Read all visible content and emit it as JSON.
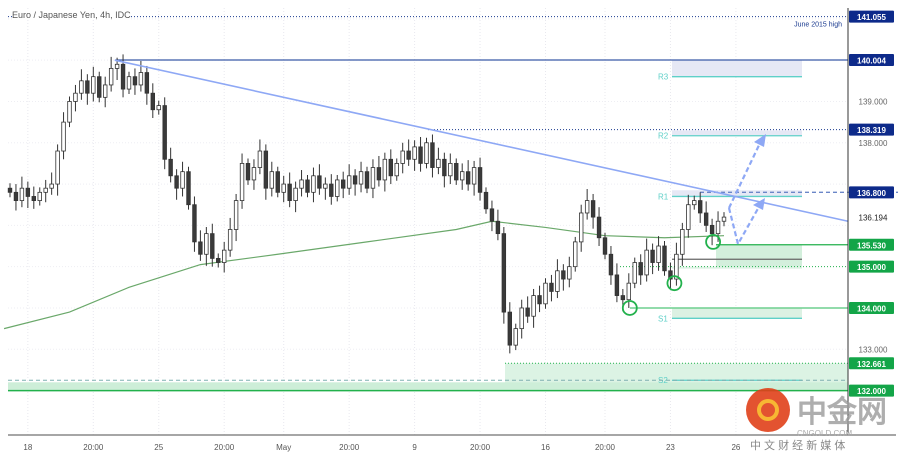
{
  "header": {
    "title": "Euro / Japanese Yen, 4h, IDC"
  },
  "colors": {
    "up": "#ffffff",
    "down": "#3a3a3a",
    "wick": "#333333",
    "ma": "#6aa86a",
    "trend": "#8ea8f5",
    "navy": "#1a3a8f",
    "green": "#22b14c",
    "teal": "#5fd0c8",
    "arrow": "#8ea8f5"
  },
  "chart_data": {
    "type": "candlestick",
    "title": "Euro / Japanese Yen, 4h, IDC",
    "ylim": [
      131.0,
      141.3
    ],
    "x_ticks": [
      {
        "label": "18",
        "i": 3
      },
      {
        "label": "20:00",
        "i": 14
      },
      {
        "label": "25",
        "i": 25
      },
      {
        "label": "20:00",
        "i": 36
      },
      {
        "label": "May",
        "i": 46
      },
      {
        "label": "20:00",
        "i": 57
      },
      {
        "label": "9",
        "i": 68
      },
      {
        "label": "20:00",
        "i": 79
      },
      {
        "label": "16",
        "i": 90
      },
      {
        "label": "20:00",
        "i": 100
      },
      {
        "label": "23",
        "i": 111
      },
      {
        "label": "26",
        "i": 122
      }
    ],
    "y_ticks": [
      "139.000",
      "138.000",
      "133.000"
    ],
    "y_tick_values": [
      139.0,
      138.0,
      133.0
    ],
    "closes": [
      136.8,
      136.6,
      136.9,
      136.7,
      136.6,
      136.8,
      136.9,
      137.0,
      137.8,
      138.5,
      139.0,
      139.2,
      139.5,
      139.2,
      139.6,
      139.1,
      139.4,
      139.8,
      139.9,
      139.3,
      139.6,
      139.4,
      139.7,
      139.2,
      138.8,
      138.9,
      137.6,
      137.2,
      136.9,
      137.3,
      136.5,
      135.6,
      135.3,
      135.8,
      135.2,
      135.1,
      135.4,
      135.9,
      136.6,
      137.5,
      137.1,
      137.4,
      137.8,
      136.9,
      137.3,
      136.8,
      137.0,
      136.6,
      136.9,
      137.1,
      136.8,
      137.2,
      136.9,
      137.0,
      136.7,
      137.1,
      136.9,
      137.2,
      137.0,
      137.3,
      136.9,
      137.4,
      137.1,
      137.6,
      137.2,
      137.5,
      137.8,
      137.6,
      137.9,
      137.5,
      138.0,
      137.4,
      137.6,
      137.2,
      137.5,
      137.1,
      137.3,
      137.0,
      137.4,
      136.8,
      136.4,
      136.1,
      135.8,
      133.9,
      133.1,
      133.5,
      134.0,
      133.8,
      134.3,
      134.1,
      134.6,
      134.4,
      134.9,
      134.7,
      135.0,
      135.6,
      136.3,
      136.6,
      136.2,
      135.7,
      135.3,
      134.8,
      134.3,
      134.2,
      134.6,
      135.1,
      134.8,
      135.4,
      135.1,
      135.5,
      134.9,
      134.7,
      135.3,
      135.9,
      136.5,
      136.6,
      136.3,
      136.0,
      135.8,
      136.1,
      136.2
    ],
    "moving_average": [
      [
        -1,
        133.5
      ],
      [
        10,
        133.9
      ],
      [
        20,
        134.5
      ],
      [
        32,
        135.05
      ],
      [
        45,
        135.3
      ],
      [
        60,
        135.6
      ],
      [
        75,
        135.9
      ],
      [
        81,
        136.1
      ],
      [
        90,
        135.95
      ],
      [
        100,
        135.75
      ],
      [
        110,
        135.7
      ],
      [
        120,
        135.75
      ]
    ],
    "trendline": [
      [
        17.6,
        140.0
      ],
      [
        140,
        136.1
      ]
    ],
    "price_labels": [
      {
        "label": "141.055",
        "value": 141.055,
        "color": "navy"
      },
      {
        "label": "140.004",
        "value": 140.004,
        "color": "navy"
      },
      {
        "label": "138.319",
        "value": 138.319,
        "color": "navy"
      },
      {
        "label": "136.800",
        "value": 136.8,
        "color": "navy"
      },
      {
        "label": "135.530",
        "value": 135.53,
        "color": "green"
      },
      {
        "label": "135.000",
        "value": 135.0,
        "color": "green"
      },
      {
        "label": "134.000",
        "value": 134.0,
        "color": "green"
      },
      {
        "label": "132.661",
        "value": 132.661,
        "color": "green"
      },
      {
        "label": "132.000",
        "value": 132.0,
        "color": "green"
      }
    ],
    "last_price": {
      "label": "136.194",
      "value": 136.194
    },
    "annotations": {
      "june_high": "June 2015 high"
    },
    "pivots": [
      {
        "label": "R3",
        "value": 139.6,
        "top": 140.0
      },
      {
        "label": "R2",
        "value": 138.17,
        "top": 138.3
      },
      {
        "label": "R1",
        "value": 136.7,
        "top": 136.85
      },
      {
        "label": "S1",
        "value": 133.75,
        "top": 134.0
      },
      {
        "label": "S2",
        "value": 132.25,
        "top": 132.25
      }
    ],
    "circles": [
      [
        104,
        134.0
      ],
      [
        111.5,
        134.6
      ],
      [
        118,
        135.6
      ]
    ]
  },
  "watermark": {
    "brand": "中金网",
    "domain": "CNGOLD.COM",
    "slogan": "中 文 财 经 新 媒 体"
  }
}
